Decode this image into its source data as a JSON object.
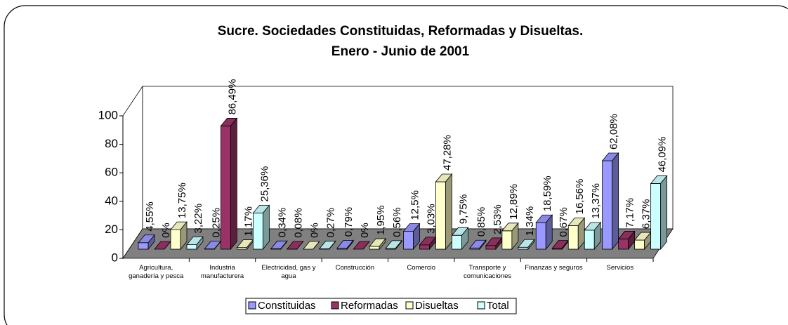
{
  "chart_data": {
    "type": "bar3d",
    "title": "Sucre. Sociedades Constituidas, Reformadas y Disueltas.",
    "subtitle": "Enero - Junio de 2001",
    "categories": [
      "Agricultura, ganadería y pesca",
      "Industria manufacturera",
      "Electricidad, gas y agua",
      "Construcción",
      "Comercio",
      "Transporte y comunicaciones",
      "Finanzas y seguros",
      "Servicios"
    ],
    "series": [
      {
        "name": "Constituidas",
        "color": "#9999ff",
        "values": [
          4.55,
          0.25,
          0.34,
          0.79,
          12.5,
          0.85,
          18.59,
          62.08
        ],
        "value_labels": [
          "4,55%",
          "0,25%",
          "0,34%",
          "0,79%",
          "12,5%",
          "0,85%",
          "18,59%",
          "62,08%"
        ]
      },
      {
        "name": "Reformadas",
        "color": "#993366",
        "values": [
          0,
          86.49,
          0.08,
          0,
          3.03,
          2.53,
          0.67,
          7.17
        ],
        "value_labels": [
          "0%",
          "86,49%",
          "0,08%",
          "0%",
          "3,03%",
          "2,53%",
          "0,67%",
          "7,17%"
        ]
      },
      {
        "name": "Disueltas",
        "color": "#ffffcc",
        "values": [
          13.75,
          1.17,
          0,
          1.95,
          47.28,
          12.89,
          16.56,
          6.37
        ],
        "value_labels": [
          "13,75%",
          "1,17%",
          "0%",
          "1,95%",
          "47,28%",
          "12,89%",
          "16,56%",
          "6,37%"
        ]
      },
      {
        "name": "Total",
        "color": "#ccffff",
        "values": [
          3.22,
          25.36,
          0.27,
          0.56,
          9.75,
          1.34,
          13.37,
          46.09
        ],
        "value_labels": [
          "3,22%",
          "25,36%",
          "0,27%",
          "0,56%",
          "9,75%",
          "1,34%",
          "13,37%",
          "46,09%"
        ]
      }
    ],
    "ylim": [
      0,
      100
    ],
    "yticks": [
      0,
      20,
      40,
      60,
      80,
      100
    ],
    "grid": false
  }
}
